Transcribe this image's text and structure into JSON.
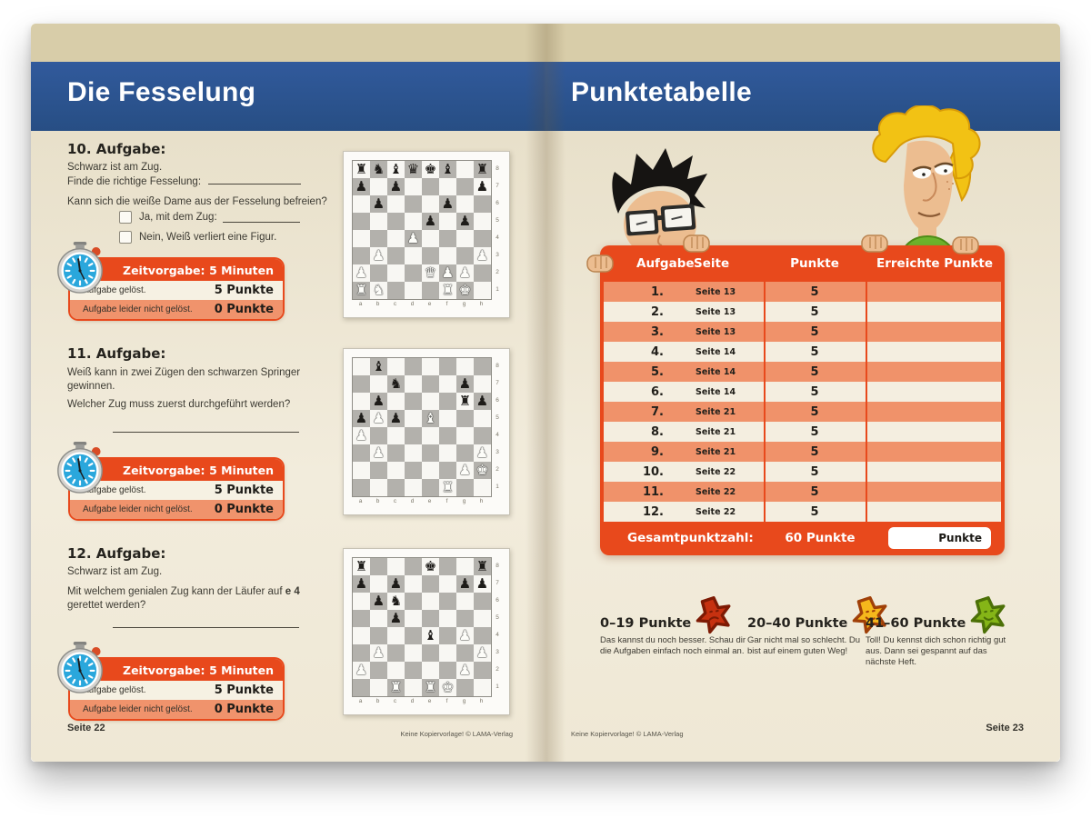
{
  "palette": {
    "banner_blue": "#2b5591",
    "accent_red": "#e8491c",
    "row_salmon": "#f0926a",
    "row_cream": "#f4eee0",
    "page_beige": "#efe8d5"
  },
  "page_left": {
    "title": "Die Fesselung",
    "footer_page": "Seite 22",
    "footer_note": "Keine Kopiervorlage!   © LAMA-Verlag",
    "timer": {
      "label": "Zeitvorgabe:",
      "value": "5 Minuten",
      "solved_label": "Aufgabe gelöst.",
      "solved_value": "5 Punkte",
      "unsolved_label": "Aufgabe leider nicht gelöst.",
      "unsolved_value": "0 Punkte"
    },
    "exercises": [
      {
        "heading": "10. Aufgabe:",
        "line1": "Schwarz ist am Zug.",
        "line2_label": "Finde die richtige Fesselung:",
        "question": "Kann sich die weiße Dame aus der Fesselung befreien?",
        "option1": "Ja, mit dem Zug:",
        "option2": "Nein, Weiß verliert eine Figur."
      },
      {
        "heading": "11. Aufgabe:",
        "line1": "Weiß kann in zwei Zügen den schwarzen Springer gewinnen.",
        "question": "Welcher Zug muss zuerst durchgeführt werden?"
      },
      {
        "heading": "12. Aufgabe:",
        "line1": "Schwarz ist am Zug.",
        "question_pre": "Mit welchem genialen Zug kann der Läufer auf ",
        "question_bold": "e 4",
        "question_post": " gerettet werden?"
      }
    ],
    "board_files": [
      "a",
      "b",
      "c",
      "d",
      "e",
      "f",
      "g",
      "h"
    ],
    "board_ranks": [
      "8",
      "7",
      "6",
      "5",
      "4",
      "3",
      "2",
      "1"
    ],
    "boards": [
      {
        "ranks": [
          "rnbqkb.r",
          "p.p....p",
          ".p...p..",
          "....p.p.",
          "...P....",
          ".P.....P",
          "P...QPP.",
          "RN...RK."
        ]
      },
      {
        "ranks": [
          ".b......",
          "..n...p.",
          ".p....rp",
          "pPp.B...",
          "P.......",
          ".P.....P",
          "......PK",
          ".....R.."
        ]
      },
      {
        "ranks": [
          "r...k..r",
          "p.p...pp",
          ".pn.....",
          "..p.....",
          "....b.P.",
          ".P.....P",
          "P.....P.",
          "..R.RK.."
        ]
      }
    ]
  },
  "page_right": {
    "title": "Punktetabelle",
    "footer_page": "Seite 23",
    "footer_note": "Keine Kopiervorlage!   © LAMA-Verlag",
    "table": {
      "headers": [
        "Aufgabe",
        "Seite",
        "Punkte",
        "Erreichte Punkte"
      ],
      "rows": [
        {
          "nr": "1.",
          "seite": "Seite 13",
          "punkte": "5",
          "erreicht": ""
        },
        {
          "nr": "2.",
          "seite": "Seite 13",
          "punkte": "5",
          "erreicht": ""
        },
        {
          "nr": "3.",
          "seite": "Seite 13",
          "punkte": "5",
          "erreicht": ""
        },
        {
          "nr": "4.",
          "seite": "Seite 14",
          "punkte": "5",
          "erreicht": ""
        },
        {
          "nr": "5.",
          "seite": "Seite 14",
          "punkte": "5",
          "erreicht": ""
        },
        {
          "nr": "6.",
          "seite": "Seite 14",
          "punkte": "5",
          "erreicht": ""
        },
        {
          "nr": "7.",
          "seite": "Seite 21",
          "punkte": "5",
          "erreicht": ""
        },
        {
          "nr": "8.",
          "seite": "Seite 21",
          "punkte": "5",
          "erreicht": ""
        },
        {
          "nr": "9.",
          "seite": "Seite 21",
          "punkte": "5",
          "erreicht": ""
        },
        {
          "nr": "10.",
          "seite": "Seite 22",
          "punkte": "5",
          "erreicht": ""
        },
        {
          "nr": "11.",
          "seite": "Seite 22",
          "punkte": "5",
          "erreicht": ""
        },
        {
          "nr": "12.",
          "seite": "Seite 22",
          "punkte": "5",
          "erreicht": ""
        }
      ],
      "footer_label": "Gesamtpunktzahl:",
      "footer_total": "60 Punkte",
      "footer_box": "Punkte"
    },
    "legend": [
      {
        "range": "0–19 Punkte",
        "text": "Das kannst du noch besser. Schau dir die Aufgaben einfach noch einmal an.",
        "star_fill": "#c63110",
        "star_stroke": "#7d1a04"
      },
      {
        "range": "20–40 Punkte",
        "text": "Gar nicht mal so schlecht. Du bist auf einem guten Weg!",
        "star_fill": "#f5b81c",
        "star_stroke": "#a04008"
      },
      {
        "range": "41–60 Punkte",
        "text": "Toll! Du kennst dich schon richtig gut aus. Dann sei gespannt auf das nächste Heft.",
        "star_fill": "#85b517",
        "star_stroke": "#4c7007"
      }
    ]
  }
}
